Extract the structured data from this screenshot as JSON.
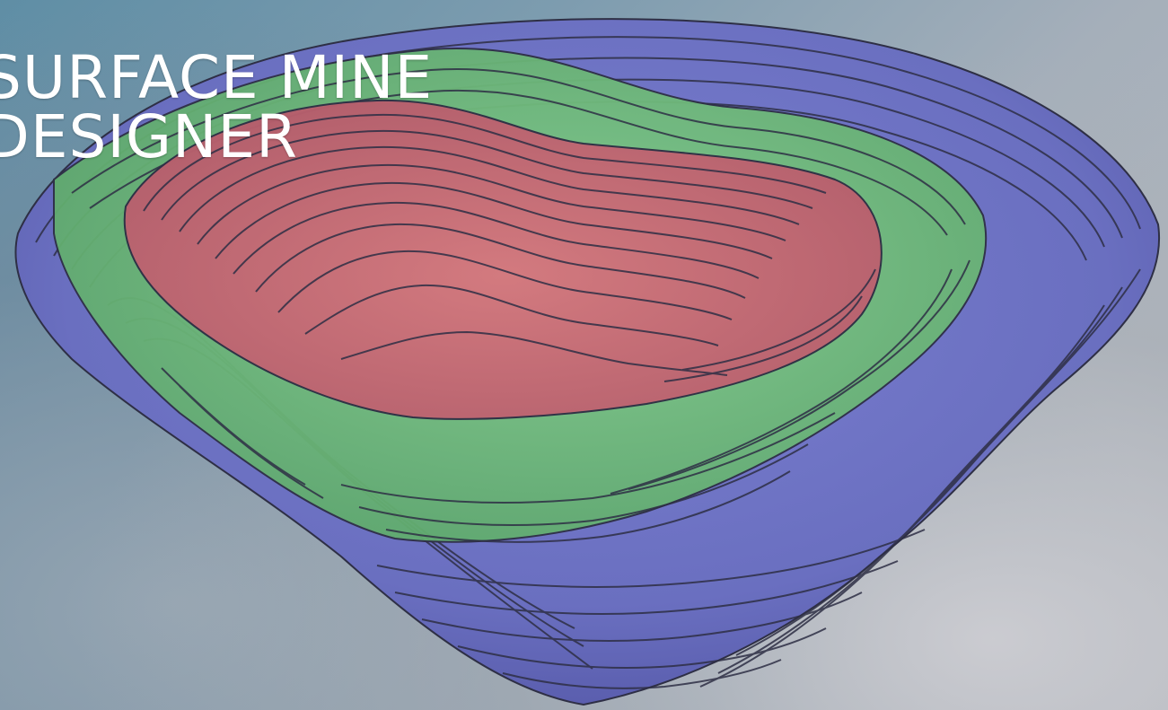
{
  "app": {
    "title_line_1": "SURFACE MINE",
    "title_line_2": "DESIGNER"
  },
  "artwork": {
    "name": "open-pit-mine-model",
    "layer_colors": {
      "outer_pit": "#6b6fc4",
      "middle_pit": "#6fbf7c",
      "inner_pit": "#c46a78",
      "bench_line": "#2e2f45"
    }
  }
}
